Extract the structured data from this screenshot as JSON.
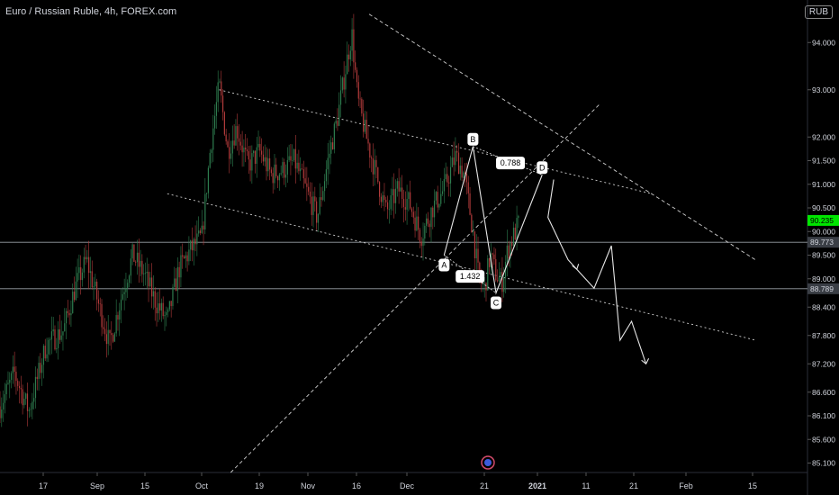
{
  "header": {
    "title": "Euro / Russian Ruble, 4h, FOREX.com",
    "currency": "RUB"
  },
  "colors": {
    "background": "#000000",
    "candle_up": "#2e7d4f",
    "candle_down": "#b23b3b",
    "text": "#d1d4dc",
    "price_badge": "#00e600"
  },
  "chart_data": {
    "type": "candlestick",
    "symbol": "EUR/RUB",
    "ylim": [
      84.9,
      94.9
    ],
    "y_ticks": [
      "94.000",
      "93.000",
      "92.000",
      "91.500",
      "91.000",
      "90.500",
      "90.000",
      "89.500",
      "89.000",
      "88.400",
      "87.800",
      "87.200",
      "86.600",
      "86.100",
      "85.600",
      "85.100"
    ],
    "x_ticks": [
      "17",
      "Sep",
      "15",
      "Oct",
      "19",
      "Nov",
      "16",
      "Dec",
      "21",
      "2021",
      "11",
      "21",
      "Feb",
      "15"
    ],
    "close_path": [
      [
        0.0,
        86.3
      ],
      [
        2.5,
        87.0
      ],
      [
        5,
        86.2
      ],
      [
        8,
        87.6
      ],
      [
        11,
        87.9
      ],
      [
        13,
        88.8
      ],
      [
        15,
        89.4
      ],
      [
        17,
        88.5
      ],
      [
        19,
        87.6
      ],
      [
        21,
        88.6
      ],
      [
        23,
        89.5
      ],
      [
        25,
        89.1
      ],
      [
        27,
        88.5
      ],
      [
        29,
        88.1
      ],
      [
        31,
        89.2
      ],
      [
        33,
        89.6
      ],
      [
        35,
        89.9
      ],
      [
        36.5,
        91.8
      ],
      [
        38,
        93.1
      ],
      [
        39.5,
        91.7
      ],
      [
        41,
        92.2
      ],
      [
        43,
        91.4
      ],
      [
        45,
        91.7
      ],
      [
        47,
        91.2
      ],
      [
        49,
        91.3
      ],
      [
        51,
        91.5
      ],
      [
        53,
        90.9
      ],
      [
        55,
        90.3
      ],
      [
        57,
        91.6
      ],
      [
        58.5,
        92.4
      ],
      [
        60,
        93.5
      ],
      [
        61,
        94.2
      ],
      [
        62,
        92.8
      ],
      [
        63.5,
        92.0
      ],
      [
        65,
        91.3
      ],
      [
        67,
        90.4
      ],
      [
        69,
        90.9
      ],
      [
        71,
        90.6
      ],
      [
        73,
        89.9
      ],
      [
        75,
        90.5
      ],
      [
        77,
        90.9
      ],
      [
        79,
        91.6
      ],
      [
        80.5,
        91.2
      ],
      [
        82,
        90.0
      ],
      [
        83,
        89.0
      ],
      [
        84,
        88.8
      ],
      [
        85,
        89.5
      ],
      [
        86,
        89.1
      ],
      [
        87,
        88.9
      ],
      [
        88,
        89.6
      ],
      [
        89,
        89.9
      ],
      [
        90,
        90.2
      ]
    ],
    "horizontal_levels": [
      {
        "label": "89.773",
        "value": 89.773
      },
      {
        "label": "88.789",
        "value": 88.789
      }
    ],
    "current_price": {
      "label": "90.235",
      "value": 90.235
    },
    "pattern_points": [
      {
        "label": "A",
        "x": 77,
        "y": 89.5
      },
      {
        "label": "B",
        "x": 82,
        "y": 91.8
      },
      {
        "label": "C",
        "x": 86,
        "y": 88.7
      },
      {
        "label": "D",
        "x": 94,
        "y": 91.2
      }
    ],
    "ratios": [
      {
        "label": "0.788",
        "x": 88.5,
        "y": 91.45
      },
      {
        "label": "1.432",
        "x": 81.5,
        "y": 89.05
      }
    ],
    "projection_path": [
      [
        96,
        91.1
      ],
      [
        95,
        90.3
      ],
      [
        98.5,
        89.4
      ],
      [
        100,
        89.2
      ],
      [
        103,
        88.8
      ],
      [
        106,
        89.7
      ],
      [
        107.5,
        87.7
      ],
      [
        109.5,
        88.1
      ],
      [
        112,
        87.2
      ]
    ],
    "trendlines": [
      {
        "from": [
          38,
          93.0
        ],
        "to": [
          113,
          90.8
        ],
        "style": "dotted"
      },
      {
        "from": [
          29,
          90.8
        ],
        "to": [
          131,
          87.7
        ],
        "style": "dotted"
      },
      {
        "from": [
          64,
          94.6
        ],
        "to": [
          131,
          89.4
        ],
        "style": "dashed"
      },
      {
        "from": [
          40,
          84.9
        ],
        "to": [
          104,
          92.7
        ],
        "style": "dashed"
      }
    ]
  }
}
